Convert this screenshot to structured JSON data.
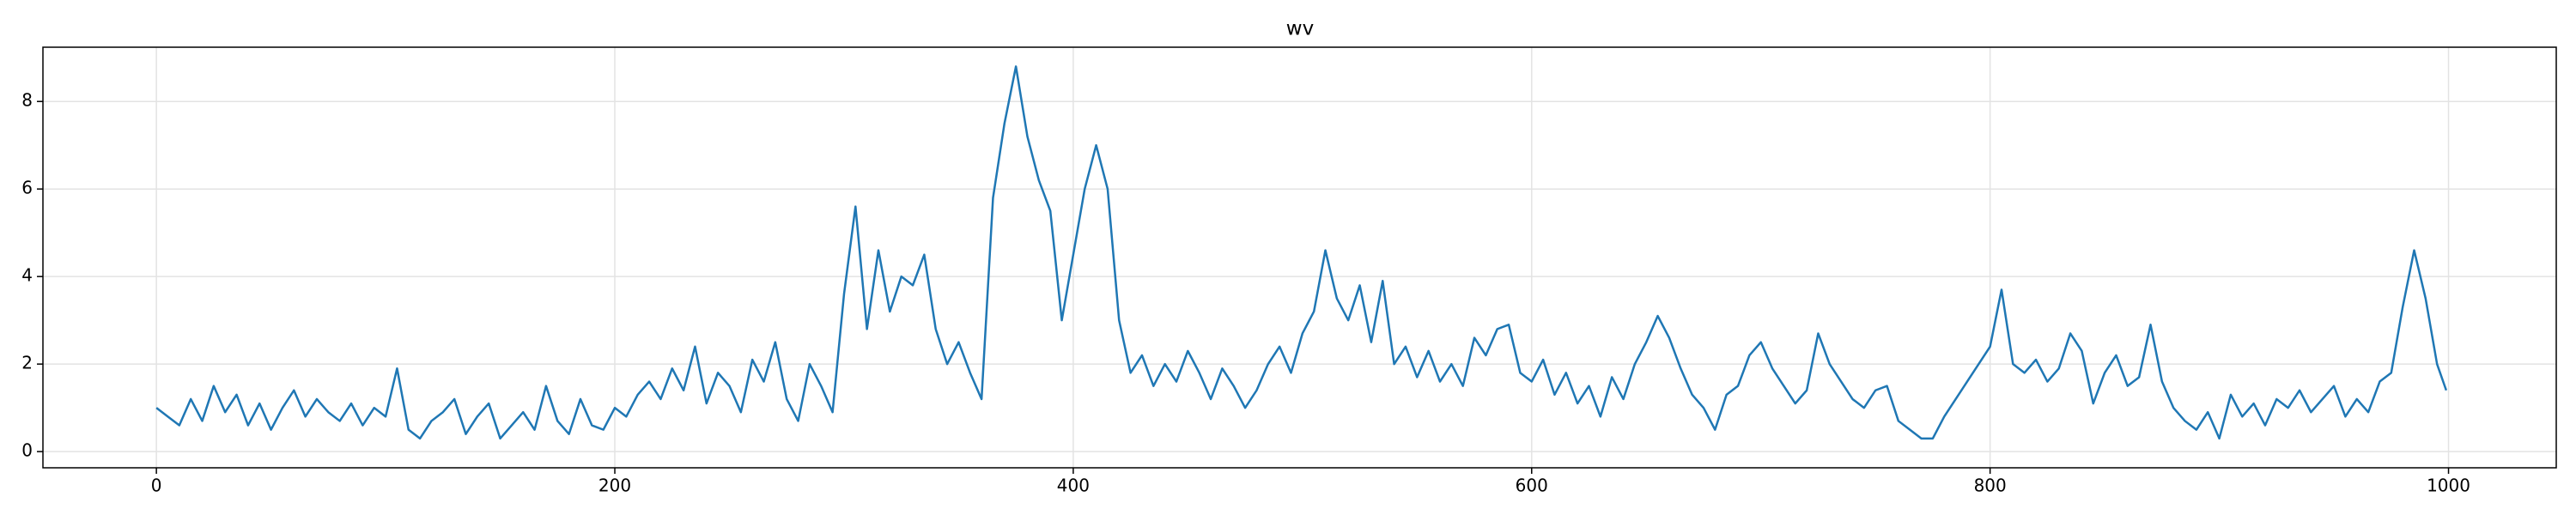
{
  "chart_data": {
    "type": "line",
    "title": "wv",
    "color": "#1f77b4",
    "grid": true,
    "xlim": [
      -49.5,
      1047
    ],
    "ylim": [
      -0.37,
      9.24
    ],
    "xticks": [
      0,
      200,
      400,
      600,
      800,
      1000
    ],
    "yticks": [
      0,
      2,
      4,
      6,
      8
    ],
    "x": [
      0,
      5,
      10,
      15,
      20,
      25,
      30,
      35,
      40,
      45,
      50,
      55,
      60,
      65,
      70,
      75,
      80,
      85,
      90,
      95,
      100,
      105,
      110,
      115,
      120,
      125,
      130,
      135,
      140,
      145,
      150,
      155,
      160,
      165,
      170,
      175,
      180,
      185,
      190,
      195,
      200,
      205,
      210,
      215,
      220,
      225,
      230,
      235,
      240,
      245,
      250,
      255,
      260,
      265,
      270,
      275,
      280,
      285,
      290,
      295,
      300,
      305,
      310,
      315,
      320,
      325,
      330,
      335,
      340,
      345,
      350,
      355,
      360,
      365,
      370,
      375,
      380,
      385,
      390,
      395,
      400,
      405,
      410,
      415,
      420,
      425,
      430,
      435,
      440,
      445,
      450,
      455,
      460,
      465,
      470,
      475,
      480,
      485,
      490,
      495,
      500,
      505,
      510,
      515,
      520,
      525,
      530,
      535,
      540,
      545,
      550,
      555,
      560,
      565,
      570,
      575,
      580,
      585,
      590,
      595,
      600,
      605,
      610,
      615,
      620,
      625,
      630,
      635,
      640,
      645,
      650,
      655,
      660,
      665,
      670,
      675,
      680,
      685,
      690,
      695,
      700,
      705,
      710,
      715,
      720,
      725,
      730,
      735,
      740,
      745,
      750,
      755,
      760,
      765,
      770,
      775,
      780,
      785,
      790,
      795,
      800,
      805,
      810,
      815,
      820,
      825,
      830,
      835,
      840,
      845,
      850,
      855,
      860,
      865,
      870,
      875,
      880,
      885,
      890,
      895,
      900,
      905,
      910,
      915,
      920,
      925,
      930,
      935,
      940,
      945,
      950,
      955,
      960,
      965,
      970,
      975,
      980,
      985,
      990,
      995,
      999
    ],
    "values": [
      1.0,
      0.8,
      0.6,
      1.2,
      0.7,
      1.5,
      0.9,
      1.3,
      0.6,
      1.1,
      0.5,
      1.0,
      1.4,
      0.8,
      1.2,
      0.9,
      0.7,
      1.1,
      0.6,
      1.0,
      0.8,
      1.9,
      0.5,
      0.3,
      0.7,
      0.9,
      1.2,
      0.4,
      0.8,
      1.1,
      0.3,
      0.6,
      0.9,
      0.5,
      1.5,
      0.7,
      0.4,
      1.2,
      0.6,
      0.5,
      1.0,
      0.8,
      1.3,
      1.6,
      1.2,
      1.9,
      1.4,
      2.4,
      1.1,
      1.8,
      1.5,
      0.9,
      2.1,
      1.6,
      2.5,
      1.2,
      0.7,
      2.0,
      1.5,
      0.9,
      3.6,
      5.6,
      2.8,
      4.6,
      3.2,
      4.0,
      3.8,
      4.5,
      2.8,
      2.0,
      2.5,
      1.8,
      1.2,
      5.8,
      7.5,
      8.8,
      7.2,
      6.2,
      5.5,
      3.0,
      4.5,
      6.0,
      7.0,
      6.0,
      3.0,
      1.8,
      2.2,
      1.5,
      2.0,
      1.6,
      2.3,
      1.8,
      1.2,
      1.9,
      1.5,
      1.0,
      1.4,
      2.0,
      2.4,
      1.8,
      2.7,
      3.2,
      4.6,
      3.5,
      3.0,
      3.8,
      2.5,
      3.9,
      2.0,
      2.4,
      1.7,
      2.3,
      1.6,
      2.0,
      1.5,
      2.6,
      2.2,
      2.8,
      2.9,
      1.8,
      1.6,
      2.1,
      1.3,
      1.8,
      1.1,
      1.5,
      0.8,
      1.7,
      1.2,
      2.0,
      2.5,
      3.1,
      2.6,
      1.9,
      1.3,
      1.0,
      0.5,
      1.3,
      1.5,
      2.2,
      2.5,
      1.9,
      1.5,
      1.1,
      1.4,
      2.7,
      2.0,
      1.6,
      1.2,
      1.0,
      1.4,
      1.5,
      0.7,
      0.5,
      0.3,
      0.3,
      0.8,
      1.2,
      1.6,
      2.0,
      2.4,
      3.7,
      2.0,
      1.8,
      2.1,
      1.6,
      1.9,
      2.7,
      2.3,
      1.1,
      1.8,
      2.2,
      1.5,
      1.7,
      2.9,
      1.6,
      1.0,
      0.7,
      0.5,
      0.9,
      0.3,
      1.3,
      0.8,
      1.1,
      0.6,
      1.2,
      1.0,
      1.4,
      0.9,
      1.2,
      1.5,
      0.8,
      1.2,
      0.9,
      1.6,
      1.8,
      3.3,
      4.6,
      3.5,
      2.0,
      1.4
    ]
  }
}
